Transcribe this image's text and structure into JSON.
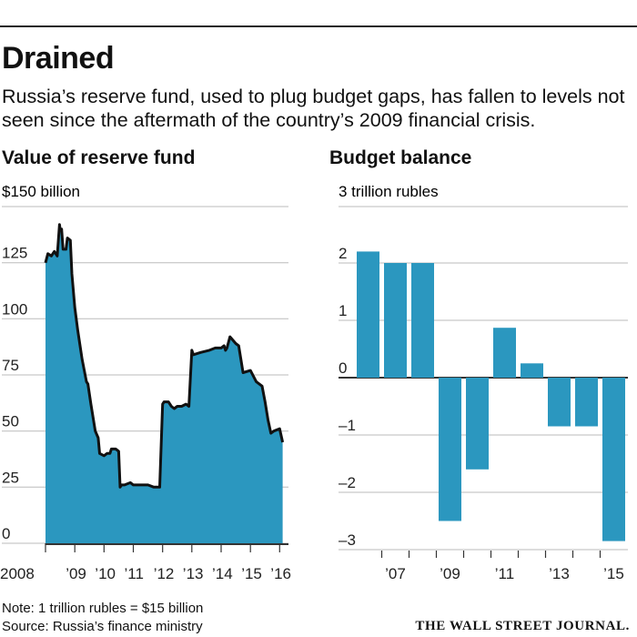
{
  "header": {
    "title": "Drained",
    "subtitle": "Russia’s reserve fund, used to plug budget gaps, has fallen to levels not seen since the aftermath of the country’s 2009 financial crisis."
  },
  "colors": {
    "fill": "#2b97bf",
    "line": "#111111",
    "axis": "#333333",
    "grid": "#bbbbbb"
  },
  "chart_data": [
    {
      "type": "area",
      "title": "Value of reserve fund",
      "ylabel": "$150 billion",
      "ylim": [
        0,
        150
      ],
      "yticks": [
        0,
        25,
        50,
        75,
        100,
        125
      ],
      "ytick_labels": [
        "0",
        "25",
        "50",
        "75",
        "100",
        "125"
      ],
      "xlim": [
        2008,
        2016.3
      ],
      "xticks": [
        2008,
        2009,
        2010,
        2011,
        2012,
        2013,
        2014,
        2015,
        2016
      ],
      "xtick_labels": [
        "2008",
        "’09",
        "’10",
        "’11",
        "’12",
        "’13",
        "’14",
        "’15",
        "’16"
      ],
      "x": [
        2008.0,
        2008.08,
        2008.2,
        2008.3,
        2008.4,
        2008.48,
        2008.5,
        2008.55,
        2008.6,
        2008.7,
        2008.75,
        2008.85,
        2008.9,
        2009.0,
        2009.1,
        2009.25,
        2009.4,
        2009.45,
        2009.55,
        2009.7,
        2009.8,
        2009.85,
        2010.0,
        2010.1,
        2010.2,
        2010.25,
        2010.4,
        2010.5,
        2010.55,
        2010.6,
        2010.7,
        2010.9,
        2011.0,
        2011.2,
        2011.5,
        2011.7,
        2011.9,
        2012.0,
        2012.05,
        2012.2,
        2012.3,
        2012.4,
        2012.5,
        2012.65,
        2012.8,
        2012.9,
        2013.0,
        2013.05,
        2013.3,
        2013.6,
        2013.8,
        2014.0,
        2014.1,
        2014.15,
        2014.2,
        2014.3,
        2014.5,
        2014.6,
        2014.75,
        2015.0,
        2015.2,
        2015.4,
        2015.5,
        2015.6,
        2015.7,
        2015.8,
        2016.0,
        2016.1
      ],
      "values": [
        125,
        129,
        128,
        130,
        128,
        142,
        140,
        140,
        131,
        131,
        136,
        135,
        120,
        105,
        95,
        82,
        72,
        71,
        62,
        50,
        47,
        40,
        39,
        40,
        40,
        42,
        42,
        41,
        25,
        26,
        26,
        27,
        26,
        26,
        26,
        25,
        25,
        62,
        63,
        63,
        61,
        60,
        61,
        61,
        62,
        61,
        86,
        84,
        85,
        86,
        87,
        87,
        88,
        86,
        87,
        92,
        89,
        88,
        76,
        77,
        72,
        70,
        63,
        55,
        49,
        50,
        51,
        45
      ]
    },
    {
      "type": "bar",
      "title": "Budget balance",
      "ylabel": "3 trillion rubles",
      "ylim": [
        -3.1,
        3
      ],
      "yticks": [
        -3,
        -2,
        -1,
        0,
        1,
        2
      ],
      "ytick_labels": [
        "–3",
        "–2",
        "–1",
        "0",
        "1",
        "2"
      ],
      "categories": [
        "2006",
        "2007",
        "2008",
        "2009",
        "2010",
        "2011",
        "2012",
        "2013",
        "2014",
        "2015"
      ],
      "xtick_labels": [
        "’07",
        "’09",
        "’11",
        "’13",
        "’15"
      ],
      "xtick_categories": [
        "2007",
        "2009",
        "2011",
        "2013",
        "2015"
      ],
      "values": [
        2.2,
        2.0,
        2.0,
        -2.5,
        -1.6,
        0.87,
        0.25,
        -0.85,
        -0.85,
        -2.85
      ]
    }
  ],
  "footer": {
    "note": "Note: 1 trillion rubles = $15 billion",
    "source": "Source: Russia’s finance ministry",
    "logo": "THE WALL STREET JOURNAL."
  }
}
